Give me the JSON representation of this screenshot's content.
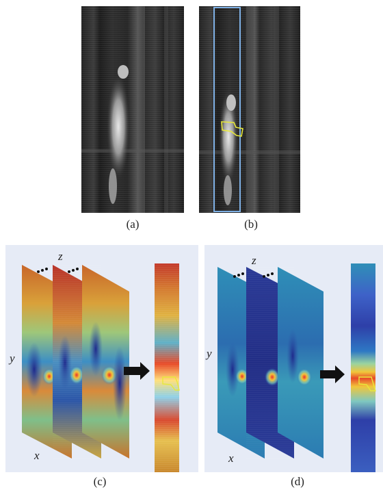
{
  "captions": {
    "a": "(a)",
    "b": "(b)",
    "c": "(c)",
    "d": "(d)"
  },
  "axes": {
    "x": "x",
    "y": "y",
    "z": "z"
  },
  "colors": {
    "panel_background": "#e6ebf6",
    "highlight_box": "#7fb1e6",
    "target_outline": "#e8e83a",
    "arrow": "#111111"
  }
}
